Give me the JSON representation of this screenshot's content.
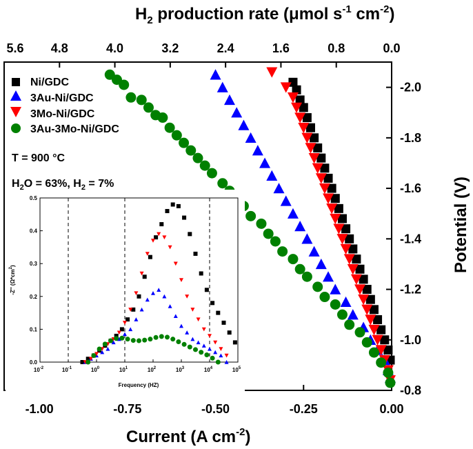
{
  "chart_data": [
    {
      "type": "scatter",
      "xlabel": "Current (A cm",
      "xlabel_sup": "-2",
      "xlabel_end": ")",
      "top_xlabel_pre": "H",
      "top_xlabel_sub": "2",
      "top_xlabel_mid": " production rate (μmol s",
      "top_xlabel_sup1": "-1",
      "top_xlabel_mid2": " cm",
      "top_xlabel_sup2": "-2",
      "top_xlabel_end": ")",
      "ylabel": "Potential (V)",
      "xlim": [
        -1.1,
        0.0
      ],
      "ylim": [
        -0.8,
        -2.1
      ],
      "top_xlim": [
        5.6,
        0.0
      ],
      "xticks": [
        "-1.00",
        "-0.75",
        "-0.50",
        "-0.25",
        "0.00"
      ],
      "xtick_values": [
        -1.0,
        -0.75,
        -0.5,
        -0.25,
        0.0
      ],
      "yticks": [
        "-2.0",
        "-1.8",
        "-1.6",
        "-1.4",
        "-1.2",
        "-1.0",
        "-0.8"
      ],
      "ytick_values": [
        -2.0,
        -1.8,
        -1.6,
        -1.4,
        -1.2,
        -1.0,
        -0.8
      ],
      "top_xticks": [
        "5.6",
        "4.8",
        "4.0",
        "3.2",
        "2.4",
        "1.6",
        "0.8",
        "0.0"
      ],
      "top_xtick_values": [
        5.6,
        4.8,
        4.0,
        3.2,
        2.4,
        1.6,
        0.8,
        0.0
      ],
      "annotations": {
        "temperature": "T = 900 °C",
        "composition_a": "H",
        "composition_a_sub": "2",
        "composition_b": "O = 63%, H",
        "composition_b_sub": "2",
        "composition_c": " = 7%"
      },
      "series": [
        {
          "name": "Ni/GDC",
          "marker": "square",
          "color": "#000000",
          "points": [
            [
              -0.28,
              -2.02
            ],
            [
              -0.27,
              -1.99
            ],
            [
              -0.26,
              -1.95
            ],
            [
              -0.25,
              -1.92
            ],
            [
              -0.24,
              -1.88
            ],
            [
              -0.23,
              -1.84
            ],
            [
              -0.22,
              -1.8
            ],
            [
              -0.21,
              -1.76
            ],
            [
              -0.2,
              -1.72
            ],
            [
              -0.19,
              -1.68
            ],
            [
              -0.18,
              -1.64
            ],
            [
              -0.17,
              -1.6
            ],
            [
              -0.16,
              -1.56
            ],
            [
              -0.15,
              -1.52
            ],
            [
              -0.14,
              -1.48
            ],
            [
              -0.13,
              -1.44
            ],
            [
              -0.12,
              -1.4
            ],
            [
              -0.11,
              -1.36
            ],
            [
              -0.1,
              -1.32
            ],
            [
              -0.09,
              -1.28
            ],
            [
              -0.08,
              -1.24
            ],
            [
              -0.07,
              -1.2
            ],
            [
              -0.06,
              -1.16
            ],
            [
              -0.05,
              -1.12
            ],
            [
              -0.04,
              -1.08
            ],
            [
              -0.03,
              -1.04
            ],
            [
              -0.02,
              -1.0
            ],
            [
              -0.01,
              -0.96
            ],
            [
              0.0,
              -0.92
            ]
          ]
        },
        {
          "name": "3Au-Ni/GDC",
          "marker": "triangle-up",
          "color": "#0000ff",
          "points": [
            [
              -0.5,
              -2.05
            ],
            [
              -0.48,
              -2.0
            ],
            [
              -0.46,
              -1.95
            ],
            [
              -0.44,
              -1.9
            ],
            [
              -0.42,
              -1.85
            ],
            [
              -0.4,
              -1.8
            ],
            [
              -0.38,
              -1.75
            ],
            [
              -0.36,
              -1.7
            ],
            [
              -0.34,
              -1.65
            ],
            [
              -0.32,
              -1.6
            ],
            [
              -0.3,
              -1.55
            ],
            [
              -0.28,
              -1.5
            ],
            [
              -0.26,
              -1.45
            ],
            [
              -0.24,
              -1.4
            ],
            [
              -0.22,
              -1.35
            ],
            [
              -0.2,
              -1.3
            ],
            [
              -0.18,
              -1.25
            ],
            [
              -0.16,
              -1.2
            ],
            [
              -0.13,
              -1.15
            ],
            [
              -0.11,
              -1.1
            ],
            [
              -0.08,
              -1.05
            ],
            [
              -0.06,
              -1.0
            ],
            [
              -0.04,
              -0.96
            ],
            [
              -0.02,
              -0.92
            ],
            [
              -0.01,
              -0.88
            ],
            [
              0.0,
              -0.85
            ]
          ]
        },
        {
          "name": "3Mo-Ni/GDC",
          "marker": "triangle-down",
          "color": "#ff0000",
          "points": [
            [
              -0.34,
              -2.06
            ],
            [
              -0.3,
              -2.0
            ],
            [
              -0.28,
              -1.96
            ],
            [
              -0.27,
              -1.92
            ],
            [
              -0.26,
              -1.88
            ],
            [
              -0.25,
              -1.84
            ],
            [
              -0.24,
              -1.8
            ],
            [
              -0.23,
              -1.76
            ],
            [
              -0.22,
              -1.72
            ],
            [
              -0.21,
              -1.68
            ],
            [
              -0.2,
              -1.64
            ],
            [
              -0.19,
              -1.6
            ],
            [
              -0.18,
              -1.56
            ],
            [
              -0.17,
              -1.52
            ],
            [
              -0.16,
              -1.48
            ],
            [
              -0.15,
              -1.44
            ],
            [
              -0.14,
              -1.4
            ],
            [
              -0.13,
              -1.36
            ],
            [
              -0.12,
              -1.32
            ],
            [
              -0.11,
              -1.28
            ],
            [
              -0.1,
              -1.24
            ],
            [
              -0.09,
              -1.2
            ],
            [
              -0.08,
              -1.16
            ],
            [
              -0.07,
              -1.12
            ],
            [
              -0.06,
              -1.08
            ],
            [
              -0.05,
              -1.04
            ],
            [
              -0.04,
              -1.0
            ],
            [
              -0.03,
              -0.96
            ],
            [
              -0.02,
              -0.92
            ],
            [
              -0.01,
              -0.88
            ],
            [
              0.0,
              -0.84
            ]
          ]
        },
        {
          "name": "3Au-3Mo-Ni/GDC",
          "marker": "circle",
          "color": "#008000",
          "points": [
            [
              -0.8,
              -2.05
            ],
            [
              -0.78,
              -2.03
            ],
            [
              -0.76,
              -2.01
            ],
            [
              -0.74,
              -1.96
            ],
            [
              -0.71,
              -1.95
            ],
            [
              -0.69,
              -1.92
            ],
            [
              -0.67,
              -1.89
            ],
            [
              -0.65,
              -1.88
            ],
            [
              -0.63,
              -1.84
            ],
            [
              -0.61,
              -1.81
            ],
            [
              -0.59,
              -1.78
            ],
            [
              -0.57,
              -1.75
            ],
            [
              -0.55,
              -1.72
            ],
            [
              -0.53,
              -1.69
            ],
            [
              -0.51,
              -1.66
            ],
            [
              -0.48,
              -1.62
            ],
            [
              -0.46,
              -1.59
            ],
            [
              -0.44,
              -1.56
            ],
            [
              -0.42,
              -1.53
            ],
            [
              -0.4,
              -1.49
            ],
            [
              -0.37,
              -1.46
            ],
            [
              -0.35,
              -1.42
            ],
            [
              -0.33,
              -1.39
            ],
            [
              -0.31,
              -1.35
            ],
            [
              -0.28,
              -1.32
            ],
            [
              -0.26,
              -1.28
            ],
            [
              -0.24,
              -1.25
            ],
            [
              -0.21,
              -1.21
            ],
            [
              -0.19,
              -1.17
            ],
            [
              -0.16,
              -1.14
            ],
            [
              -0.14,
              -1.1
            ],
            [
              -0.12,
              -1.06
            ],
            [
              -0.09,
              -1.03
            ],
            [
              -0.07,
              -0.99
            ],
            [
              -0.05,
              -0.95
            ],
            [
              -0.03,
              -0.91
            ],
            [
              -0.01,
              -0.87
            ],
            [
              0.0,
              -0.83
            ]
          ]
        }
      ]
    },
    {
      "type": "scatter",
      "xlabel": "Frequency (HZ)",
      "ylabel": "-Z'' (Ω*cm",
      "ylabel_sup": "2",
      "ylabel_end": ")",
      "xscale": "log",
      "xlim_exp": [
        -2,
        5
      ],
      "ylim": [
        0.0,
        0.5
      ],
      "xtick_base": "10",
      "xtick_exps": [
        "-2",
        "-1",
        "0",
        "1",
        "2",
        "3",
        "4",
        "5"
      ],
      "yticks": [
        "0.0",
        "0.1",
        "0.2",
        "0.3",
        "0.4",
        "0.5"
      ],
      "ytick_values": [
        0.0,
        0.1,
        0.2,
        0.3,
        0.4,
        0.5
      ],
      "vlines_log10": [
        -1,
        1,
        4
      ],
      "series": [
        {
          "name": "Ni/GDC",
          "marker": "square",
          "color": "#000000",
          "points": [
            [
              -0.5,
              0.0
            ],
            [
              -0.3,
              0.01
            ],
            [
              -0.1,
              0.02
            ],
            [
              0.1,
              0.035
            ],
            [
              0.3,
              0.05
            ],
            [
              0.5,
              0.065
            ],
            [
              0.7,
              0.08
            ],
            [
              0.9,
              0.1
            ],
            [
              1.1,
              0.13
            ],
            [
              1.3,
              0.16
            ],
            [
              1.5,
              0.2
            ],
            [
              1.7,
              0.26
            ],
            [
              1.9,
              0.32
            ],
            [
              2.1,
              0.38
            ],
            [
              2.3,
              0.42
            ],
            [
              2.5,
              0.46
            ],
            [
              2.7,
              0.48
            ],
            [
              2.9,
              0.475
            ],
            [
              3.1,
              0.44
            ],
            [
              3.3,
              0.39
            ],
            [
              3.5,
              0.33
            ],
            [
              3.7,
              0.27
            ],
            [
              3.9,
              0.22
            ],
            [
              4.1,
              0.18
            ],
            [
              4.3,
              0.15
            ],
            [
              4.5,
              0.12
            ],
            [
              4.7,
              0.09
            ],
            [
              4.9,
              0.06
            ]
          ]
        },
        {
          "name": "3Au-Ni/GDC",
          "marker": "triangle-up",
          "color": "#0000ff",
          "points": [
            [
              -0.4,
              0.0
            ],
            [
              -0.2,
              0.01
            ],
            [
              0.0,
              0.02
            ],
            [
              0.2,
              0.03
            ],
            [
              0.4,
              0.04
            ],
            [
              0.6,
              0.06
            ],
            [
              0.8,
              0.07
            ],
            [
              1.0,
              0.085
            ],
            [
              1.2,
              0.1
            ],
            [
              1.4,
              0.13
            ],
            [
              1.6,
              0.16
            ],
            [
              1.8,
              0.19
            ],
            [
              2.0,
              0.21
            ],
            [
              2.2,
              0.22
            ],
            [
              2.4,
              0.2
            ],
            [
              2.6,
              0.17
            ],
            [
              2.8,
              0.14
            ],
            [
              3.0,
              0.11
            ],
            [
              3.2,
              0.09
            ],
            [
              3.4,
              0.07
            ],
            [
              3.6,
              0.06
            ],
            [
              3.8,
              0.05
            ],
            [
              4.0,
              0.04
            ],
            [
              4.2,
              0.03
            ],
            [
              4.4,
              0.02
            ],
            [
              4.6,
              0.0
            ]
          ]
        },
        {
          "name": "3Mo-Ni/GDC",
          "marker": "triangle-down",
          "color": "#ff0000",
          "points": [
            [
              -0.4,
              0.0
            ],
            [
              -0.2,
              0.01
            ],
            [
              0.0,
              0.025
            ],
            [
              0.2,
              0.04
            ],
            [
              0.4,
              0.055
            ],
            [
              0.6,
              0.07
            ],
            [
              0.8,
              0.09
            ],
            [
              1.0,
              0.12
            ],
            [
              1.2,
              0.16
            ],
            [
              1.4,
              0.21
            ],
            [
              1.6,
              0.27
            ],
            [
              1.8,
              0.33
            ],
            [
              2.0,
              0.37
            ],
            [
              2.2,
              0.39
            ],
            [
              2.4,
              0.38
            ],
            [
              2.6,
              0.35
            ],
            [
              2.8,
              0.3
            ],
            [
              3.0,
              0.25
            ],
            [
              3.2,
              0.2
            ],
            [
              3.4,
              0.16
            ],
            [
              3.6,
              0.13
            ],
            [
              3.8,
              0.1
            ],
            [
              4.0,
              0.08
            ],
            [
              4.2,
              0.06
            ],
            [
              4.4,
              0.04
            ],
            [
              4.6,
              0.02
            ]
          ]
        },
        {
          "name": "3Au-3Mo-Ni/GDC",
          "marker": "circle",
          "color": "#008000",
          "points": [
            [
              -0.3,
              0.0
            ],
            [
              -0.1,
              0.02
            ],
            [
              0.1,
              0.04
            ],
            [
              0.3,
              0.055
            ],
            [
              0.5,
              0.065
            ],
            [
              0.7,
              0.072
            ],
            [
              0.9,
              0.073
            ],
            [
              1.1,
              0.07
            ],
            [
              1.3,
              0.066
            ],
            [
              1.5,
              0.065
            ],
            [
              1.7,
              0.067
            ],
            [
              1.9,
              0.07
            ],
            [
              2.1,
              0.075
            ],
            [
              2.3,
              0.078
            ],
            [
              2.5,
              0.076
            ],
            [
              2.7,
              0.07
            ],
            [
              2.9,
              0.062
            ],
            [
              3.1,
              0.054
            ],
            [
              3.3,
              0.046
            ],
            [
              3.5,
              0.038
            ],
            [
              3.7,
              0.03
            ],
            [
              3.9,
              0.022
            ],
            [
              4.1,
              0.012
            ],
            [
              4.3,
              0.0
            ]
          ]
        }
      ]
    }
  ]
}
